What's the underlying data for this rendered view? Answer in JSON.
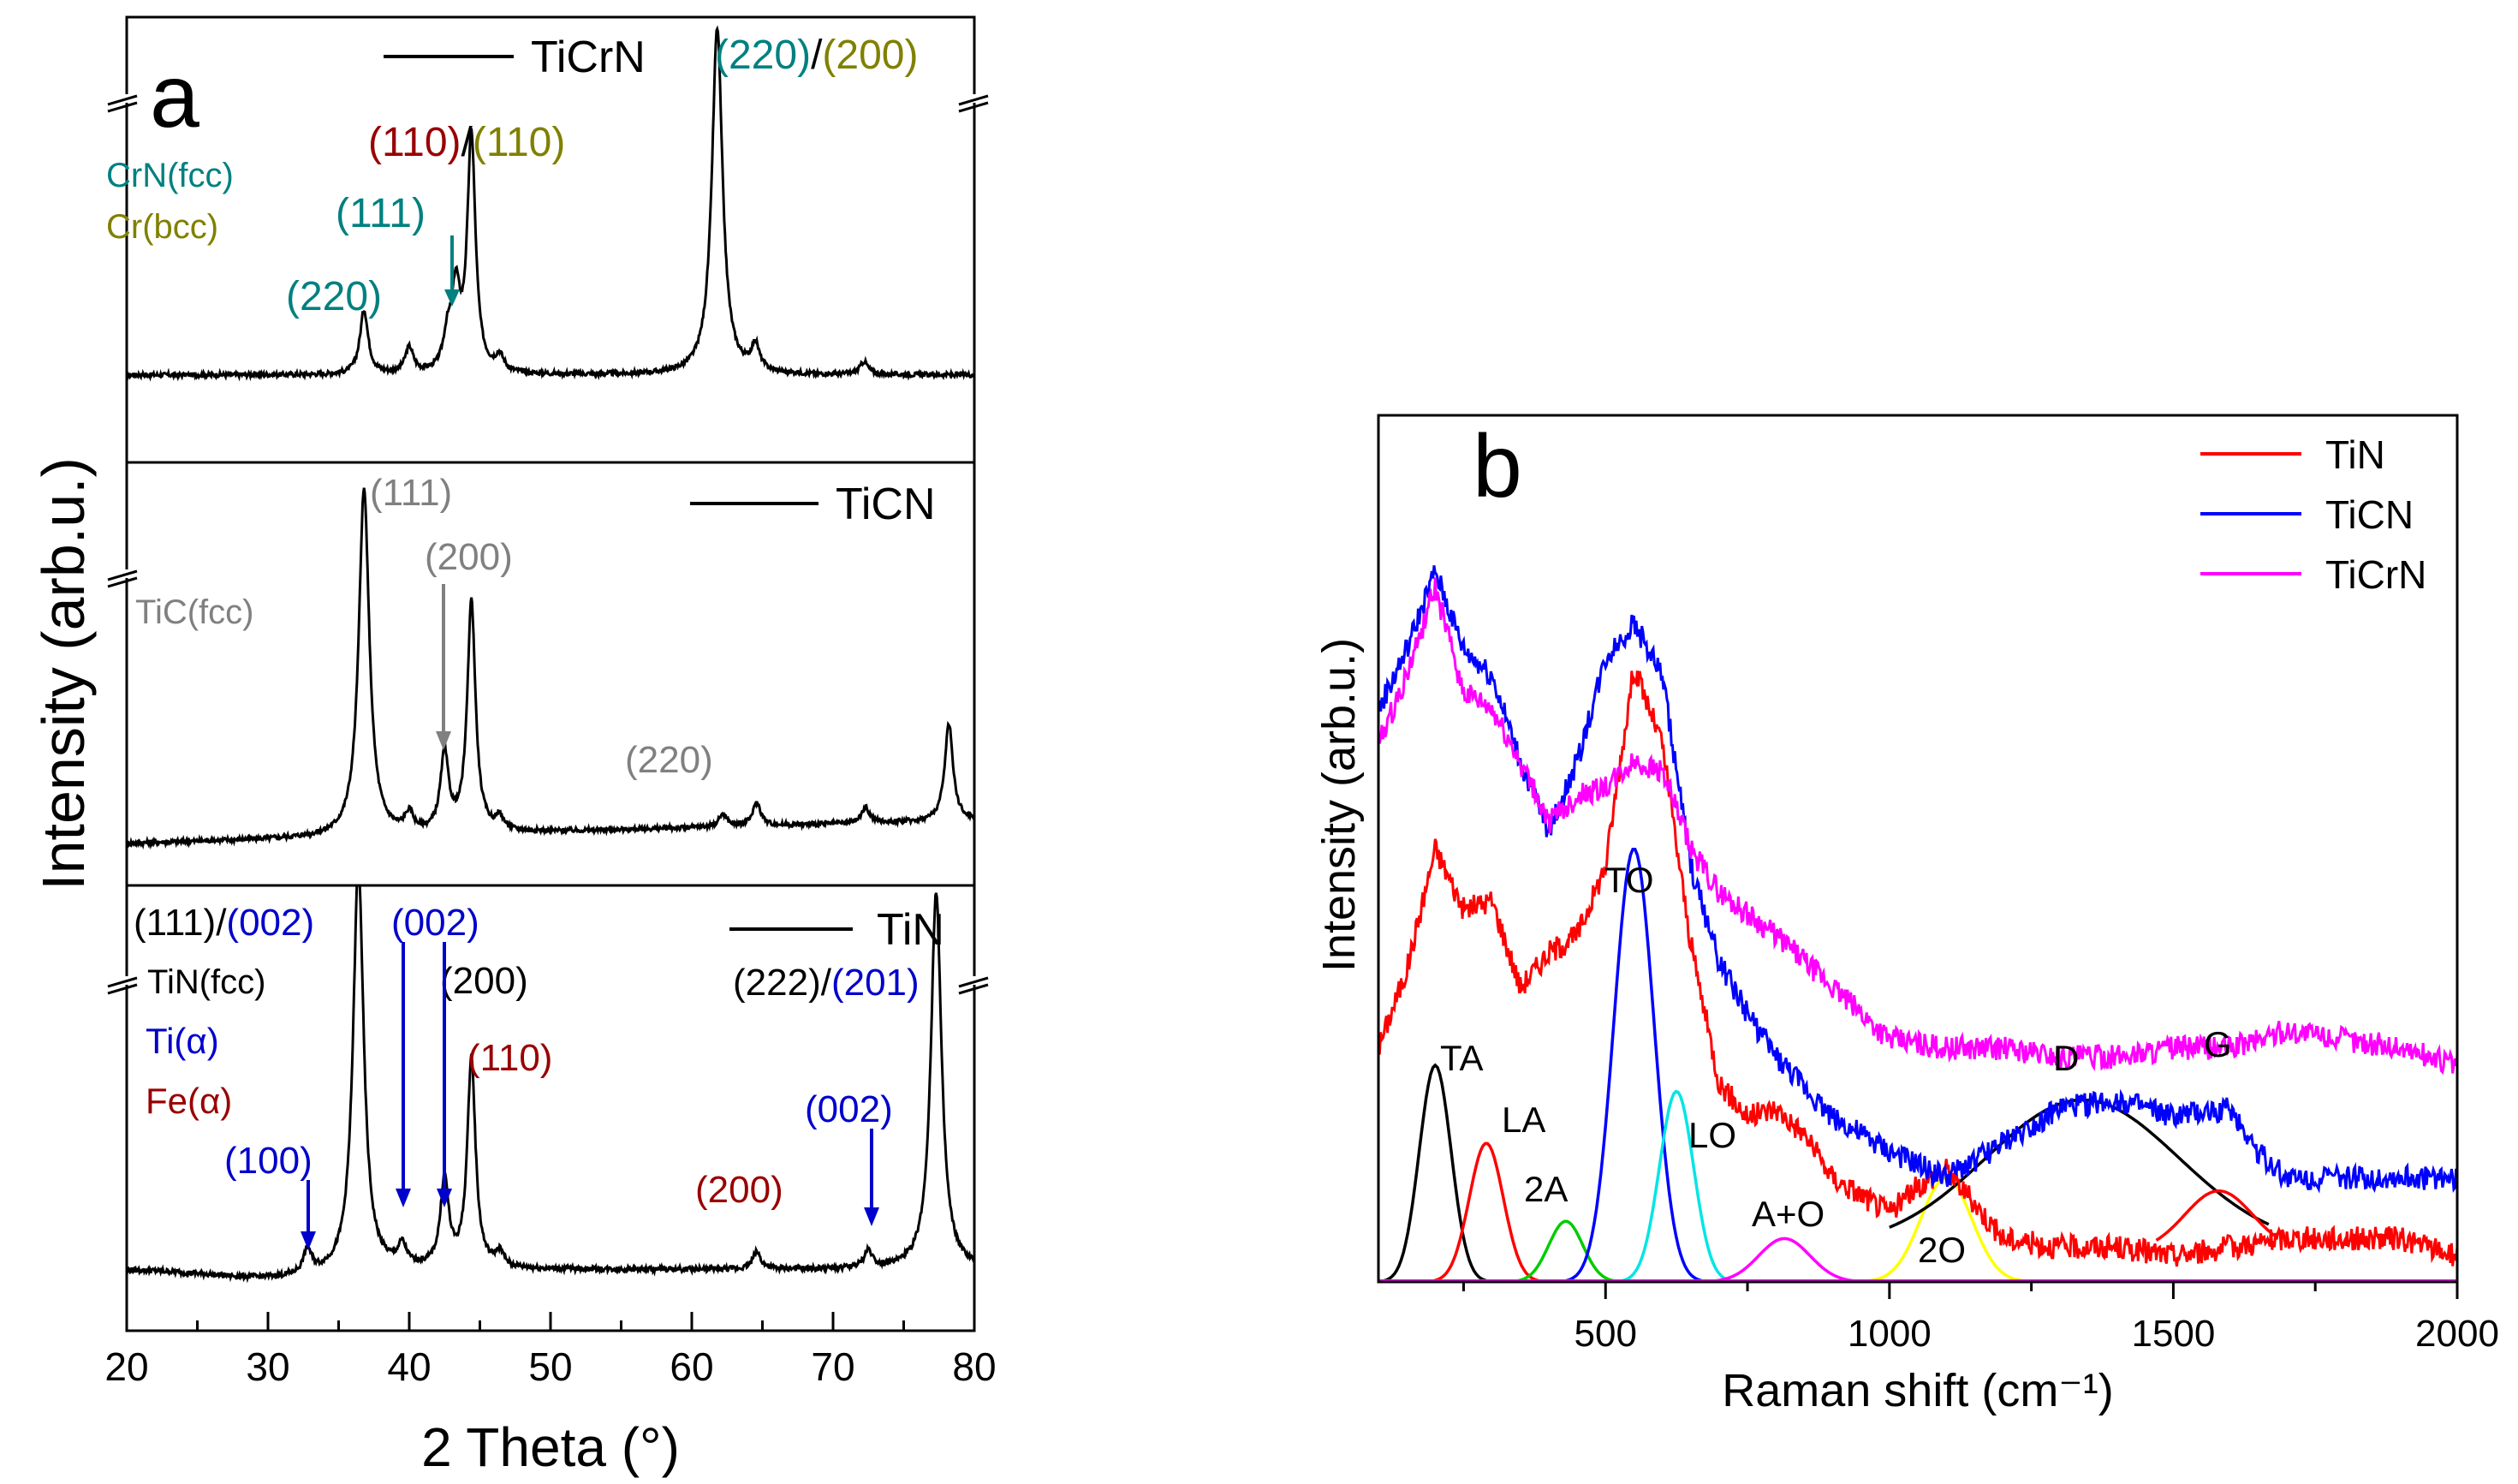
{
  "chart_data": [
    {
      "type": "line",
      "panel_label": "a",
      "xlabel": "2 Theta (°)",
      "ylabel": "Intensity (arb.u.)",
      "xlim": [
        20,
        80
      ],
      "xticks": [
        "20",
        "30",
        "40",
        "50",
        "60",
        "70",
        "80"
      ],
      "subplots": [
        {
          "name": "TiCrN",
          "legend": "TiCrN",
          "baseline": 0.08,
          "peaks": [
            [
              36.8,
              0.25
            ],
            [
              40.0,
              0.1
            ],
            [
              42.7,
              0.12
            ],
            [
              43.3,
              0.3
            ],
            [
              44.4,
              0.92
            ],
            [
              46.4,
              0.06
            ],
            [
              61.8,
              1.35
            ],
            [
              64.5,
              0.1
            ],
            [
              72.2,
              0.05
            ]
          ],
          "phase_labels": [
            {
              "text": "CrN(fcc)",
              "color": "#008080"
            },
            {
              "text": "Cr(bcc)",
              "color": "#808000"
            }
          ],
          "annotations": [
            {
              "text": "(220)",
              "color": "#008080"
            },
            {
              "text": "(111)",
              "color": "#008080"
            },
            {
              "parts": [
                {
                  "text": "(110)",
                  "color": "#990000"
                },
                {
                  "text": "/",
                  "color": "#000000"
                },
                {
                  "text": "(110)",
                  "color": "#808000"
                }
              ]
            },
            {
              "parts": [
                {
                  "text": "(220)",
                  "color": "#008080"
                },
                {
                  "text": "/",
                  "color": "#000000"
                },
                {
                  "text": "(200)",
                  "color": "#808000"
                }
              ]
            }
          ]
        },
        {
          "name": "TiCN",
          "legend": "TiCN",
          "baseline": 0.05,
          "peaks": [
            [
              36.8,
              1.35
            ],
            [
              40.0,
              0.07
            ],
            [
              42.5,
              0.3
            ],
            [
              44.4,
              0.9
            ],
            [
              46.4,
              0.05
            ],
            [
              62.2,
              0.05
            ],
            [
              64.6,
              0.09
            ],
            [
              72.3,
              0.06
            ],
            [
              78.2,
              0.38
            ]
          ],
          "phase_labels": [
            {
              "text": "TiC(fcc)",
              "color": "#808080"
            }
          ],
          "annotations": [
            {
              "text": "(111)",
              "color": "#808080"
            },
            {
              "text": "(200)",
              "color": "#808080"
            },
            {
              "text": "(220)",
              "color": "#808080"
            }
          ]
        },
        {
          "name": "TiN",
          "legend": "TiN",
          "baseline": 0.05,
          "peaks": [
            [
              32.8,
              0.08
            ],
            [
              36.4,
              1.4
            ],
            [
              39.5,
              0.07
            ],
            [
              42.5,
              0.3
            ],
            [
              44.4,
              0.72
            ],
            [
              46.4,
              0.05
            ],
            [
              64.6,
              0.06
            ],
            [
              72.5,
              0.06
            ],
            [
              77.3,
              1.3
            ]
          ],
          "phase_labels": [
            {
              "text": "TiN(fcc)",
              "color": "#000000"
            },
            {
              "text": "Ti(α)",
              "color": "#0000cc"
            },
            {
              "text": "Fe(α)",
              "color": "#990000"
            }
          ],
          "annotations": [
            {
              "parts": [
                {
                  "text": "(111)",
                  "color": "#000000"
                },
                {
                  "text": "/",
                  "color": "#000000"
                },
                {
                  "text": "(002)",
                  "color": "#0000cc"
                }
              ]
            },
            {
              "text": "(002)",
              "color": "#0000cc"
            },
            {
              "text": "(200)",
              "color": "#000000"
            },
            {
              "text": "(110)",
              "color": "#990000"
            },
            {
              "text": "(100)",
              "color": "#0000cc"
            },
            {
              "text": "(200)",
              "color": "#990000"
            },
            {
              "text": "(002)",
              "color": "#0000cc"
            },
            {
              "parts": [
                {
                  "text": "(222)",
                  "color": "#000000"
                },
                {
                  "text": "/",
                  "color": "#000000"
                },
                {
                  "text": "(201)",
                  "color": "#0000cc"
                }
              ]
            }
          ]
        }
      ]
    },
    {
      "type": "line",
      "panel_label": "b",
      "xlabel": "Raman shift (cm⁻¹)",
      "ylabel": "Intensity (arb.u.)",
      "xlim": [
        100,
        2000
      ],
      "xticks": [
        "500",
        "1000",
        "1500",
        "2000"
      ],
      "legend": [
        {
          "name": "TiN",
          "color": "#ff0000"
        },
        {
          "name": "TiCN",
          "color": "#0000ff"
        },
        {
          "name": "TiCrN",
          "color": "#ff00ff"
        }
      ],
      "series": [
        {
          "name": "TiN",
          "color": "#ff0000",
          "x": [
            100,
            150,
            200,
            250,
            300,
            350,
            400,
            450,
            500,
            550,
            600,
            650,
            700,
            750,
            800,
            850,
            900,
            950,
            1000,
            1050,
            1100,
            1150,
            1200,
            1300,
            1400,
            1500,
            1600,
            1700,
            1800,
            1900,
            2000
          ],
          "y": [
            0.27,
            0.36,
            0.5,
            0.43,
            0.44,
            0.34,
            0.38,
            0.4,
            0.48,
            0.71,
            0.62,
            0.39,
            0.23,
            0.19,
            0.2,
            0.17,
            0.12,
            0.1,
            0.08,
            0.11,
            0.13,
            0.09,
            0.05,
            0.04,
            0.04,
            0.03,
            0.04,
            0.05,
            0.05,
            0.05,
            0.03
          ]
        },
        {
          "name": "TiCN",
          "color": "#0000ff",
          "x": [
            100,
            150,
            200,
            250,
            300,
            350,
            400,
            450,
            500,
            550,
            600,
            650,
            700,
            750,
            800,
            900,
            1000,
            1100,
            1200,
            1300,
            1400,
            1500,
            1600,
            1650,
            1700,
            1800,
            1900,
            2000
          ],
          "y": [
            0.66,
            0.73,
            0.82,
            0.73,
            0.7,
            0.6,
            0.52,
            0.6,
            0.72,
            0.76,
            0.7,
            0.48,
            0.37,
            0.31,
            0.26,
            0.19,
            0.15,
            0.12,
            0.16,
            0.2,
            0.21,
            0.19,
            0.2,
            0.15,
            0.12,
            0.12,
            0.12,
            0.12
          ]
        },
        {
          "name": "TiCrN",
          "color": "#ff00ff",
          "x": [
            100,
            150,
            200,
            250,
            300,
            350,
            400,
            450,
            500,
            550,
            600,
            650,
            700,
            800,
            900,
            1000,
            1100,
            1200,
            1300,
            1400,
            1500,
            1600,
            1700,
            1800,
            1900,
            2000
          ],
          "y": [
            0.62,
            0.7,
            0.8,
            0.68,
            0.66,
            0.6,
            0.53,
            0.56,
            0.57,
            0.6,
            0.59,
            0.5,
            0.45,
            0.4,
            0.34,
            0.28,
            0.27,
            0.27,
            0.26,
            0.26,
            0.27,
            0.27,
            0.29,
            0.28,
            0.27,
            0.25
          ]
        }
      ],
      "fit_components": [
        {
          "label": "TA",
          "color": "#000000",
          "center": 200,
          "height": 0.25,
          "sigma": 28
        },
        {
          "label": "LA",
          "color": "#ff0000",
          "center": 290,
          "height": 0.16,
          "sigma": 30
        },
        {
          "label": "2A",
          "color": "#00cc00",
          "center": 430,
          "height": 0.07,
          "sigma": 30
        },
        {
          "label": "TO",
          "color": "#0000ff",
          "center": 550,
          "height": 0.5,
          "sigma": 35
        },
        {
          "label": "LO",
          "color": "#00e5e5",
          "center": 625,
          "height": 0.22,
          "sigma": 30
        },
        {
          "label": "A+O",
          "color": "#ff00ff",
          "center": 815,
          "height": 0.05,
          "sigma": 45
        },
        {
          "label": "2O",
          "color": "#ffff00",
          "center": 1100,
          "height": 0.12,
          "sigma": 45
        },
        {
          "label": "D",
          "color": "#000000",
          "center": 1340,
          "height": 0.17,
          "sigma": 170,
          "offset": 0.04,
          "xrange": [
            1000,
            1670
          ]
        },
        {
          "label": "G",
          "color": "#ff0000",
          "center": 1580,
          "height": 0.07,
          "sigma": 60,
          "offset": 0.035,
          "xrange": [
            1470,
            1680
          ]
        }
      ]
    }
  ]
}
